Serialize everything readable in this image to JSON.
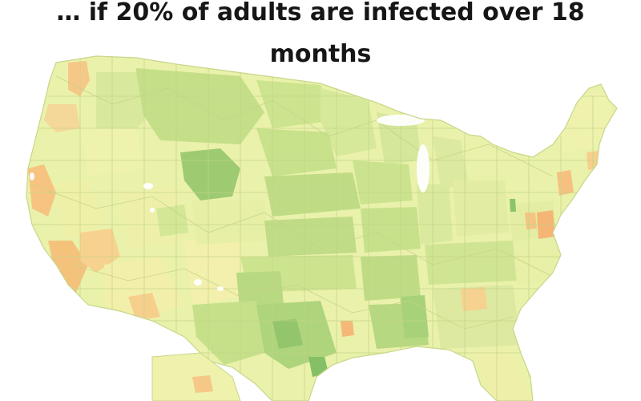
{
  "title": {
    "line1": "… if 20% of adults are infected over 18",
    "line2": "months"
  },
  "colors": {
    "land_base": "#e8f0a8",
    "borders": "#c9d78a",
    "green_light": "#d4e79a",
    "green_mid": "#bfdc85",
    "green_dark": "#a6d07a",
    "green_deep": "#8cc46a",
    "yellow": "#f1efa6",
    "orange_light": "#f8d28c",
    "orange": "#f4b978",
    "background": "#ffffff"
  },
  "map": {
    "regions": "county-level choropleth of the United States"
  }
}
